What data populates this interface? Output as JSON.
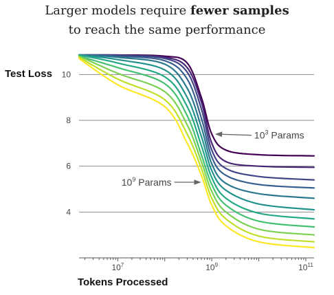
{
  "title": {
    "line1_pre": "Larger models require ",
    "line1_bold": "fewer samples",
    "line2": "to reach the same performance"
  },
  "chart_data": {
    "type": "line",
    "title": "Larger models require fewer samples to reach the same performance",
    "xlabel": "Tokens Processed",
    "ylabel": "Test Loss",
    "x_scale": "log",
    "xlim": [
      1500000,
      150000000000
    ],
    "ylim": [
      2.0,
      11.0
    ],
    "xticks": [
      {
        "value": 10000000,
        "base": "10",
        "exp": "7"
      },
      {
        "value": 1000000000,
        "base": "10",
        "exp": "9"
      },
      {
        "value": 100000000000,
        "base": "10",
        "exp": "11"
      }
    ],
    "yticks": [
      4,
      6,
      8,
      10
    ],
    "gridlines_y": [
      4,
      6,
      8,
      10
    ],
    "colormap": "viridis",
    "colors": [
      "#440154",
      "#482475",
      "#414487",
      "#355f8d",
      "#2a788e",
      "#21918c",
      "#22a884",
      "#44bf70",
      "#7ad151",
      "#bddf26",
      "#fde725"
    ],
    "series": [
      {
        "name": "10^3 Params",
        "values": [
          [
            1500000,
            10.85
          ],
          [
            10000000,
            10.85
          ],
          [
            100000000,
            10.8
          ],
          [
            300000000,
            10.5
          ],
          [
            600000000,
            9.0
          ],
          [
            1000000000,
            7.4
          ],
          [
            2000000000,
            6.7
          ],
          [
            10000000000,
            6.5
          ],
          [
            150000000000,
            6.45
          ]
        ]
      },
      {
        "values": [
          [
            1500000,
            10.85
          ],
          [
            10000000,
            10.84
          ],
          [
            100000000,
            10.75
          ],
          [
            300000000,
            10.3
          ],
          [
            600000000,
            8.8
          ],
          [
            1000000000,
            7.0
          ],
          [
            2000000000,
            6.2
          ],
          [
            10000000000,
            6.0
          ],
          [
            150000000000,
            5.95
          ]
        ]
      },
      {
        "values": [
          [
            1500000,
            10.85
          ],
          [
            10000000,
            10.83
          ],
          [
            100000000,
            10.7
          ],
          [
            300000000,
            10.1
          ],
          [
            600000000,
            8.5
          ],
          [
            1000000000,
            6.7
          ],
          [
            2000000000,
            5.9
          ],
          [
            10000000000,
            5.55
          ],
          [
            150000000000,
            5.4
          ]
        ]
      },
      {
        "values": [
          [
            1500000,
            10.85
          ],
          [
            10000000,
            10.8
          ],
          [
            100000000,
            10.6
          ],
          [
            300000000,
            9.8
          ],
          [
            600000000,
            8.1
          ],
          [
            1000000000,
            6.4
          ],
          [
            2000000000,
            5.6
          ],
          [
            10000000000,
            5.2
          ],
          [
            150000000000,
            5.05
          ]
        ]
      },
      {
        "values": [
          [
            1500000,
            10.85
          ],
          [
            10000000,
            10.75
          ],
          [
            100000000,
            10.45
          ],
          [
            300000000,
            9.4
          ],
          [
            600000000,
            7.7
          ],
          [
            1000000000,
            6.1
          ],
          [
            2000000000,
            5.25
          ],
          [
            10000000000,
            4.8
          ],
          [
            150000000000,
            4.6
          ]
        ]
      },
      {
        "values": [
          [
            1500000,
            10.85
          ],
          [
            10000000,
            10.65
          ],
          [
            100000000,
            10.2
          ],
          [
            300000000,
            9.0
          ],
          [
            600000000,
            7.3
          ],
          [
            1000000000,
            5.8
          ],
          [
            2000000000,
            4.95
          ],
          [
            10000000000,
            4.35
          ],
          [
            150000000000,
            4.1
          ]
        ]
      },
      {
        "values": [
          [
            1500000,
            10.85
          ],
          [
            10000000,
            10.5
          ],
          [
            100000000,
            9.9
          ],
          [
            300000000,
            8.6
          ],
          [
            600000000,
            6.9
          ],
          [
            1000000000,
            5.5
          ],
          [
            2000000000,
            4.6
          ],
          [
            10000000000,
            3.95
          ],
          [
            150000000000,
            3.7
          ]
        ]
      },
      {
        "values": [
          [
            1500000,
            10.8
          ],
          [
            10000000,
            10.3
          ],
          [
            100000000,
            9.6
          ],
          [
            300000000,
            8.2
          ],
          [
            600000000,
            6.5
          ],
          [
            1000000000,
            5.2
          ],
          [
            2000000000,
            4.3
          ],
          [
            10000000000,
            3.6
          ],
          [
            150000000000,
            3.35
          ]
        ]
      },
      {
        "values": [
          [
            1500000,
            10.8
          ],
          [
            10000000,
            10.05
          ],
          [
            100000000,
            9.25
          ],
          [
            300000000,
            7.8
          ],
          [
            600000000,
            6.2
          ],
          [
            1000000000,
            4.9
          ],
          [
            2000000000,
            4.0
          ],
          [
            10000000000,
            3.25
          ],
          [
            150000000000,
            3.0
          ]
        ]
      },
      {
        "values": [
          [
            1500000,
            10.75
          ],
          [
            10000000,
            9.8
          ],
          [
            100000000,
            8.9
          ],
          [
            300000000,
            7.4
          ],
          [
            600000000,
            5.9
          ],
          [
            1000000000,
            4.6
          ],
          [
            2000000000,
            3.7
          ],
          [
            10000000000,
            2.95
          ],
          [
            150000000000,
            2.7
          ]
        ]
      },
      {
        "name": "10^9 Params",
        "values": [
          [
            1500000,
            10.7
          ],
          [
            10000000,
            9.55
          ],
          [
            100000000,
            8.6
          ],
          [
            300000000,
            7.0
          ],
          [
            600000000,
            5.6
          ],
          [
            1000000000,
            4.3
          ],
          [
            2000000000,
            3.4
          ],
          [
            10000000000,
            2.7
          ],
          [
            150000000000,
            2.45
          ]
        ]
      }
    ],
    "annotations": [
      {
        "base": "10",
        "exp": "3",
        "suffix": " Params",
        "target_series": 0,
        "arrow_to": [
          1000000000,
          7.4
        ],
        "label_at": [
          8000000000,
          7.35
        ]
      },
      {
        "base": "10",
        "exp": "9",
        "suffix": " Params",
        "target_series": 10,
        "arrow_to": [
          650000000,
          5.3
        ],
        "label_at": [
          12000000,
          5.3
        ]
      }
    ],
    "grid": true,
    "legend": "none"
  }
}
